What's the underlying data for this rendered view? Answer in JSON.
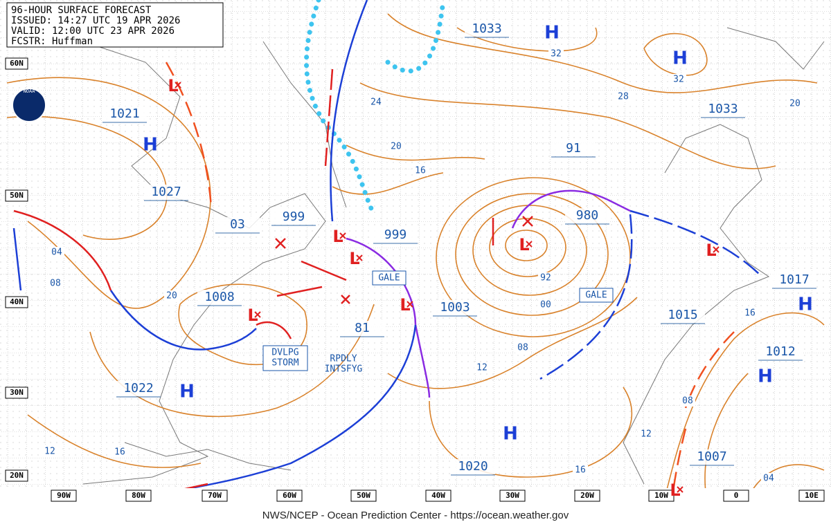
{
  "header": {
    "lines": [
      "96-HOUR SURFACE FORECAST",
      "ISSUED: 14:27 UTC 19 APR 2026",
      "VALID: 12:00 UTC 23 APR 2026",
      "FCSTR: Huffman"
    ]
  },
  "logo": "NOAA",
  "latitudes": [
    "60N",
    "50N",
    "40N",
    "30N",
    "20N"
  ],
  "longitudes": [
    "90W",
    "80W",
    "70W",
    "60W",
    "50W",
    "40W",
    "30W",
    "20W",
    "10W",
    "0",
    "10E"
  ],
  "pressure_labels": [
    "1033",
    "1021",
    "1027",
    "03",
    "999",
    "999",
    "980",
    "91",
    "1008",
    "81",
    "1003",
    "1015",
    "1017",
    "1012",
    "1022",
    "1020",
    "1007",
    "1033"
  ],
  "isobar_labels": [
    "32",
    "32",
    "28",
    "24",
    "20",
    "16",
    "20",
    "04",
    "08",
    "20",
    "92",
    "00",
    "08",
    "12",
    "16",
    "08",
    "12",
    "16",
    "16",
    "12",
    "04"
  ],
  "highs": [
    "H",
    "H",
    "H",
    "H",
    "H",
    "H",
    "H"
  ],
  "lows": [
    "L",
    "L",
    "L",
    "L",
    "L",
    "L",
    "L",
    "L"
  ],
  "annotations": [
    "GALE",
    "GALE",
    "DVLPG",
    "STORM",
    "RPDLY",
    "INTSFYG"
  ],
  "footer": "NWS/NCEP - Ocean Prediction Center - https://ocean.weather.gov"
}
